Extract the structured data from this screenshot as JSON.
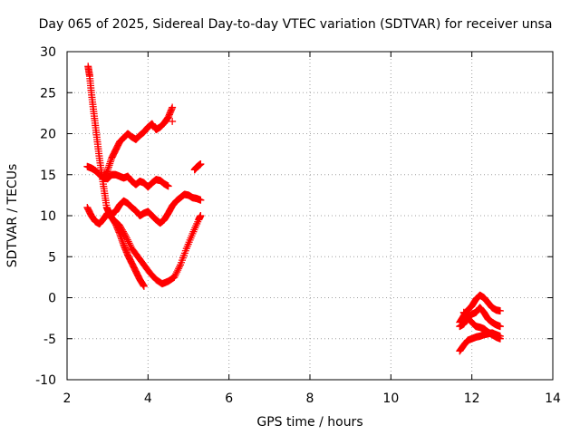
{
  "chart_data": {
    "type": "scatter",
    "title": "Day 065 of 2025, Sidereal Day-to-day VTEC variation (SDTVAR) for receiver unsa",
    "xlabel": "GPS time / hours",
    "ylabel": "SDTVAR / TECUs",
    "xlim": [
      2,
      14
    ],
    "ylim": [
      -10,
      30
    ],
    "x_ticks": [
      "2",
      "4",
      "6",
      "8",
      "10",
      "12",
      "14"
    ],
    "y_ticks": [
      "30",
      "25",
      "20",
      "15",
      "10",
      "5",
      "0",
      "-5",
      "-10"
    ],
    "grid": true,
    "marker": "+",
    "marker_color": "#ff0000",
    "series": [
      {
        "x": [
          2.52,
          2.56,
          2.6,
          2.65,
          2.7,
          2.75,
          2.8,
          2.86,
          2.92,
          2.98,
          3.05
        ],
        "y": [
          28.2,
          27.0,
          25.0,
          23.0,
          21.0,
          19.0,
          17.0,
          15.0,
          13.0,
          11.0,
          10.2
        ]
      },
      {
        "x": [
          2.9,
          3.0,
          3.1,
          3.2,
          3.3,
          3.4,
          3.5,
          3.6,
          3.7,
          3.8,
          3.9,
          4.0,
          4.1,
          4.2,
          4.3,
          4.4,
          4.5,
          4.6
        ],
        "y": [
          14.5,
          15.5,
          17.0,
          18.0,
          19.0,
          19.5,
          20.0,
          19.6,
          19.3,
          19.8,
          20.2,
          20.8,
          21.2,
          20.5,
          20.8,
          21.3,
          22.0,
          23.2
        ]
      },
      {
        "x": [
          2.5,
          2.6,
          2.7,
          2.8,
          2.9,
          3.0,
          3.1,
          3.2,
          3.3,
          3.4,
          3.5,
          3.6,
          3.7,
          3.8,
          3.9,
          4.0,
          4.1,
          4.2,
          4.3,
          4.4,
          4.5
        ],
        "y": [
          16.0,
          15.8,
          15.5,
          15.0,
          14.6,
          14.5,
          15.0,
          15.0,
          14.8,
          14.6,
          14.8,
          14.2,
          13.8,
          14.2,
          14.0,
          13.5,
          14.0,
          14.4,
          14.3,
          13.9,
          13.6
        ]
      },
      {
        "x": [
          2.5,
          2.6,
          2.7,
          2.8,
          2.9,
          3.0,
          3.1,
          3.2,
          3.3,
          3.4,
          3.5,
          3.6,
          3.7,
          3.8,
          3.9,
          4.0,
          4.1,
          4.2,
          4.3,
          4.4,
          4.5,
          4.6,
          4.7,
          4.8,
          4.9,
          5.0,
          5.1,
          5.2,
          5.3
        ],
        "y": [
          11.0,
          10.0,
          9.3,
          9.0,
          9.6,
          10.3,
          10.2,
          10.5,
          11.3,
          11.8,
          11.5,
          11.0,
          10.6,
          10.0,
          10.3,
          10.5,
          10.0,
          9.5,
          9.1,
          9.5,
          10.3,
          11.2,
          11.8,
          12.2,
          12.6,
          12.5,
          12.2,
          12.1,
          11.9
        ]
      },
      {
        "x": [
          3.0,
          3.1,
          3.2,
          3.3,
          3.4,
          3.5,
          3.6,
          3.7,
          3.8,
          3.9
        ],
        "y": [
          10.2,
          9.8,
          9.0,
          7.8,
          6.4,
          5.2,
          4.2,
          3.2,
          2.2,
          1.4
        ]
      },
      {
        "x": [
          3.15,
          3.3,
          3.45,
          3.6,
          3.75,
          3.9,
          4.05,
          4.2,
          4.35,
          4.5,
          4.65,
          4.8,
          4.95,
          5.1,
          5.25,
          5.3
        ],
        "y": [
          9.5,
          8.8,
          7.5,
          6.0,
          5.0,
          4.0,
          3.0,
          2.2,
          1.7,
          2.0,
          2.5,
          4.0,
          6.0,
          7.8,
          9.5,
          10.0
        ]
      },
      {
        "x": [
          5.15,
          5.2,
          5.25,
          5.3
        ],
        "y": [
          15.6,
          15.9,
          16.1,
          16.3
        ]
      },
      {
        "x": [
          11.7,
          11.8,
          11.9,
          12.0,
          12.1,
          12.2,
          12.3,
          12.4,
          12.5,
          12.6,
          12.7
        ],
        "y": [
          -3.0,
          -2.2,
          -1.5,
          -1.0,
          -0.2,
          0.3,
          0.0,
          -0.6,
          -1.2,
          -1.5,
          -1.6
        ]
      },
      {
        "x": [
          11.7,
          11.8,
          11.9,
          12.0,
          12.1,
          12.2,
          12.3,
          12.4,
          12.5,
          12.6,
          12.7
        ],
        "y": [
          -3.5,
          -3.2,
          -2.5,
          -2.0,
          -1.8,
          -1.2,
          -1.8,
          -2.6,
          -3.0,
          -3.3,
          -3.5
        ]
      },
      {
        "x": [
          11.8,
          11.9,
          12.0,
          12.1,
          12.2,
          12.3,
          12.4,
          12.5,
          12.6,
          12.7
        ],
        "y": [
          -1.8,
          -2.5,
          -3.0,
          -3.5,
          -3.6,
          -3.8,
          -4.2,
          -4.5,
          -4.8,
          -5.0
        ]
      },
      {
        "x": [
          11.7,
          11.8,
          11.9,
          12.0,
          12.1,
          12.2,
          12.3,
          12.4,
          12.5,
          12.6,
          12.7
        ],
        "y": [
          -6.5,
          -5.8,
          -5.2,
          -5.0,
          -4.8,
          -4.7,
          -4.5,
          -4.4,
          -4.3,
          -4.5,
          -4.7
        ]
      },
      {
        "x": [
          4.6
        ],
        "y": [
          21.5
        ]
      }
    ]
  }
}
